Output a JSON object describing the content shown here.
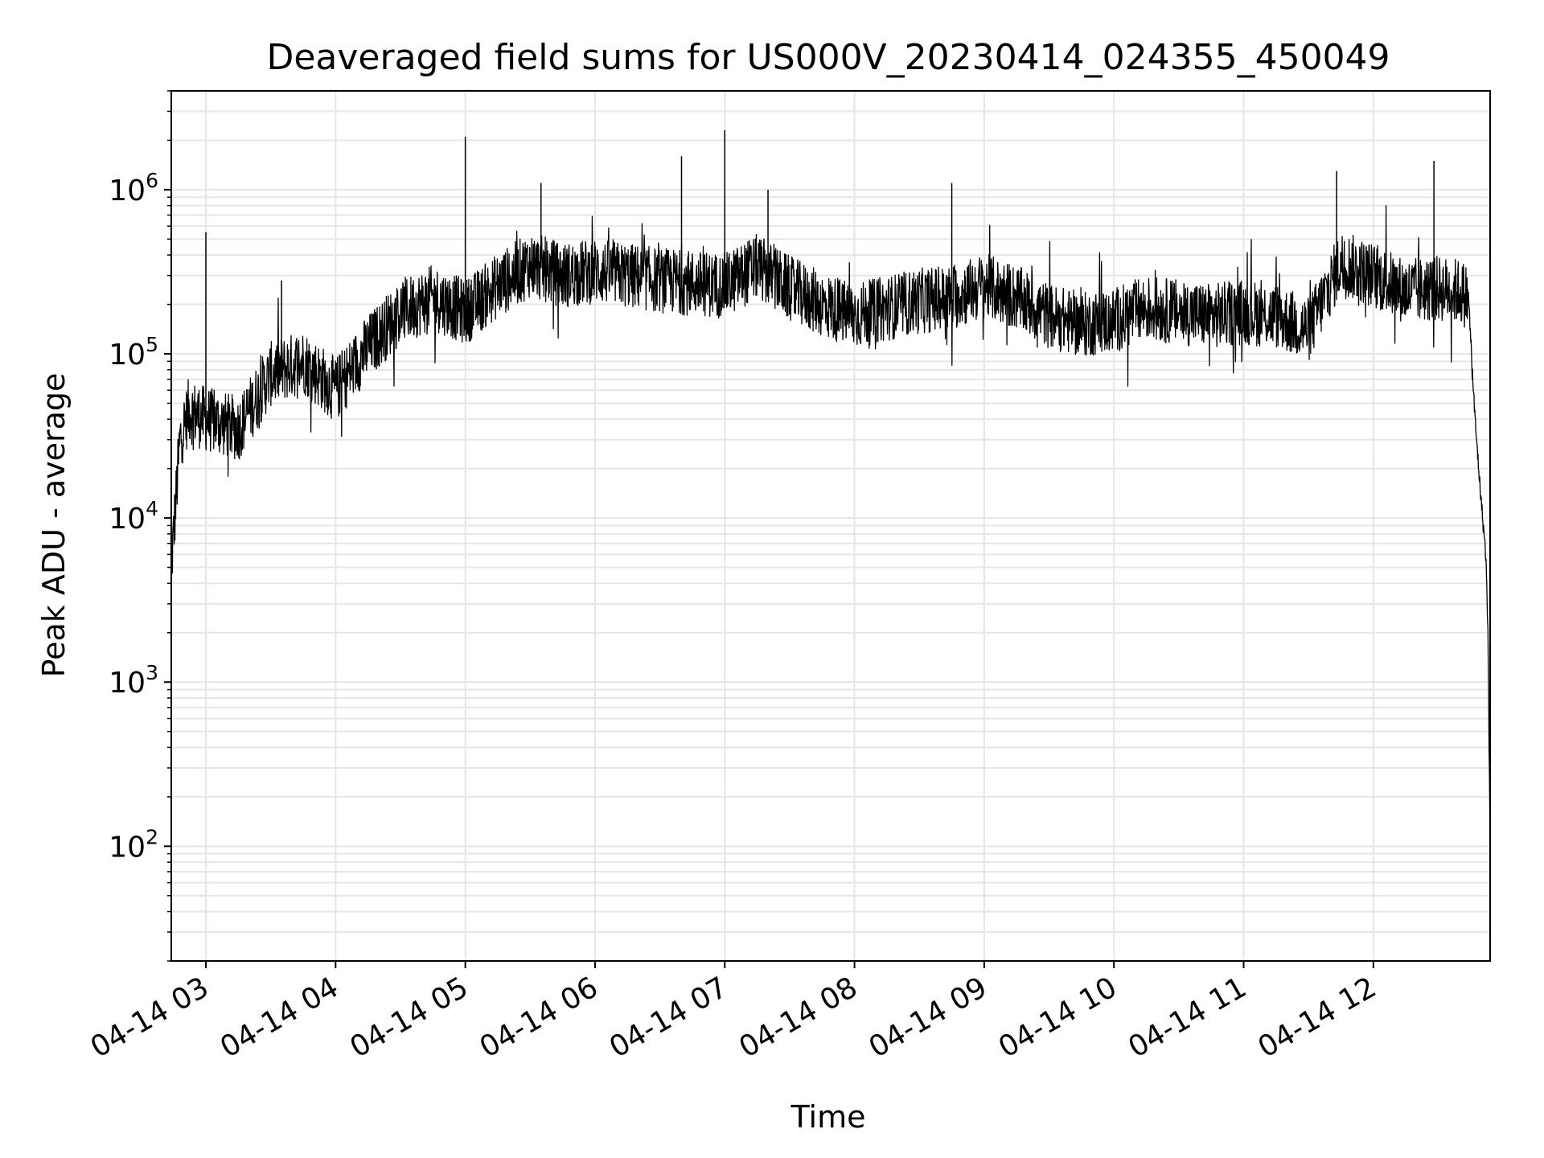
{
  "chart_data": {
    "type": "line",
    "title": "Deaveraged field sums for US000V_20230414_024355_450049",
    "xlabel": "Time",
    "ylabel": "Peak ADU - average",
    "yscale": "log",
    "ylim": [
      20,
      4000000
    ],
    "xlim": [
      "04-14 02:44",
      "04-14 12:54"
    ],
    "grid": true,
    "x_ticks": [
      "04-14 03",
      "04-14 04",
      "04-14 05",
      "04-14 06",
      "04-14 07",
      "04-14 08",
      "04-14 09",
      "04-14 10",
      "04-14 11",
      "04-14 12"
    ],
    "y_ticks": [
      {
        "base": "10",
        "exp": "2",
        "value": 100
      },
      {
        "base": "10",
        "exp": "3",
        "value": 1000
      },
      {
        "base": "10",
        "exp": "4",
        "value": 10000
      },
      {
        "base": "10",
        "exp": "5",
        "value": 100000
      },
      {
        "base": "10",
        "exp": "6",
        "value": 1000000
      }
    ],
    "series": [
      {
        "color": "#000000",
        "x": [
          "04-14 02:44",
          "04-14 02:46",
          "04-14 02:48",
          "04-14 02:52",
          "04-14 03:00",
          "04-14 03:15",
          "04-14 03:30",
          "04-14 03:45",
          "04-14 04:00",
          "04-14 04:15",
          "04-14 04:30",
          "04-14 04:45",
          "04-14 05:00",
          "04-14 05:15",
          "04-14 05:30",
          "04-14 05:45",
          "04-14 06:00",
          "04-14 06:15",
          "04-14 06:30",
          "04-14 06:45",
          "04-14 07:00",
          "04-14 07:15",
          "04-14 07:30",
          "04-14 07:45",
          "04-14 08:00",
          "04-14 08:15",
          "04-14 08:30",
          "04-14 08:45",
          "04-14 09:00",
          "04-14 09:15",
          "04-14 09:30",
          "04-14 09:45",
          "04-14 10:00",
          "04-14 10:15",
          "04-14 10:30",
          "04-14 10:45",
          "04-14 11:00",
          "04-14 11:15",
          "04-14 11:30",
          "04-14 11:45",
          "04-14 12:00",
          "04-14 12:15",
          "04-14 12:30",
          "04-14 12:40",
          "04-14 12:44",
          "04-14 12:47",
          "04-14 12:50",
          "04-14 12:52",
          "04-14 12:53",
          "04-14 12:54"
        ],
        "y": [
          5000,
          12000,
          30000,
          45000,
          40000,
          35000,
          75000,
          90000,
          60000,
          110000,
          180000,
          220000,
          180000,
          260000,
          350000,
          300000,
          320000,
          300000,
          280000,
          270000,
          260000,
          340000,
          250000,
          200000,
          170000,
          190000,
          210000,
          220000,
          260000,
          220000,
          170000,
          150000,
          160000,
          190000,
          180000,
          170000,
          180000,
          170000,
          140000,
          360000,
          300000,
          240000,
          250000,
          240000,
          220000,
          40000,
          12000,
          6000,
          2000,
          100
        ]
      }
    ],
    "spikes": [
      {
        "x": "04-14 03:00",
        "y": 550000
      },
      {
        "x": "04-14 03:35",
        "y": 280000
      },
      {
        "x": "04-14 05:00",
        "y": 2100000
      },
      {
        "x": "04-14 05:35",
        "y": 1100000
      },
      {
        "x": "04-14 06:40",
        "y": 1600000
      },
      {
        "x": "04-14 07:00",
        "y": 2300000
      },
      {
        "x": "04-14 07:20",
        "y": 1000000
      },
      {
        "x": "04-14 08:45",
        "y": 1100000
      },
      {
        "x": "04-14 11:43",
        "y": 1300000
      },
      {
        "x": "04-14 12:28",
        "y": 1500000
      }
    ]
  }
}
